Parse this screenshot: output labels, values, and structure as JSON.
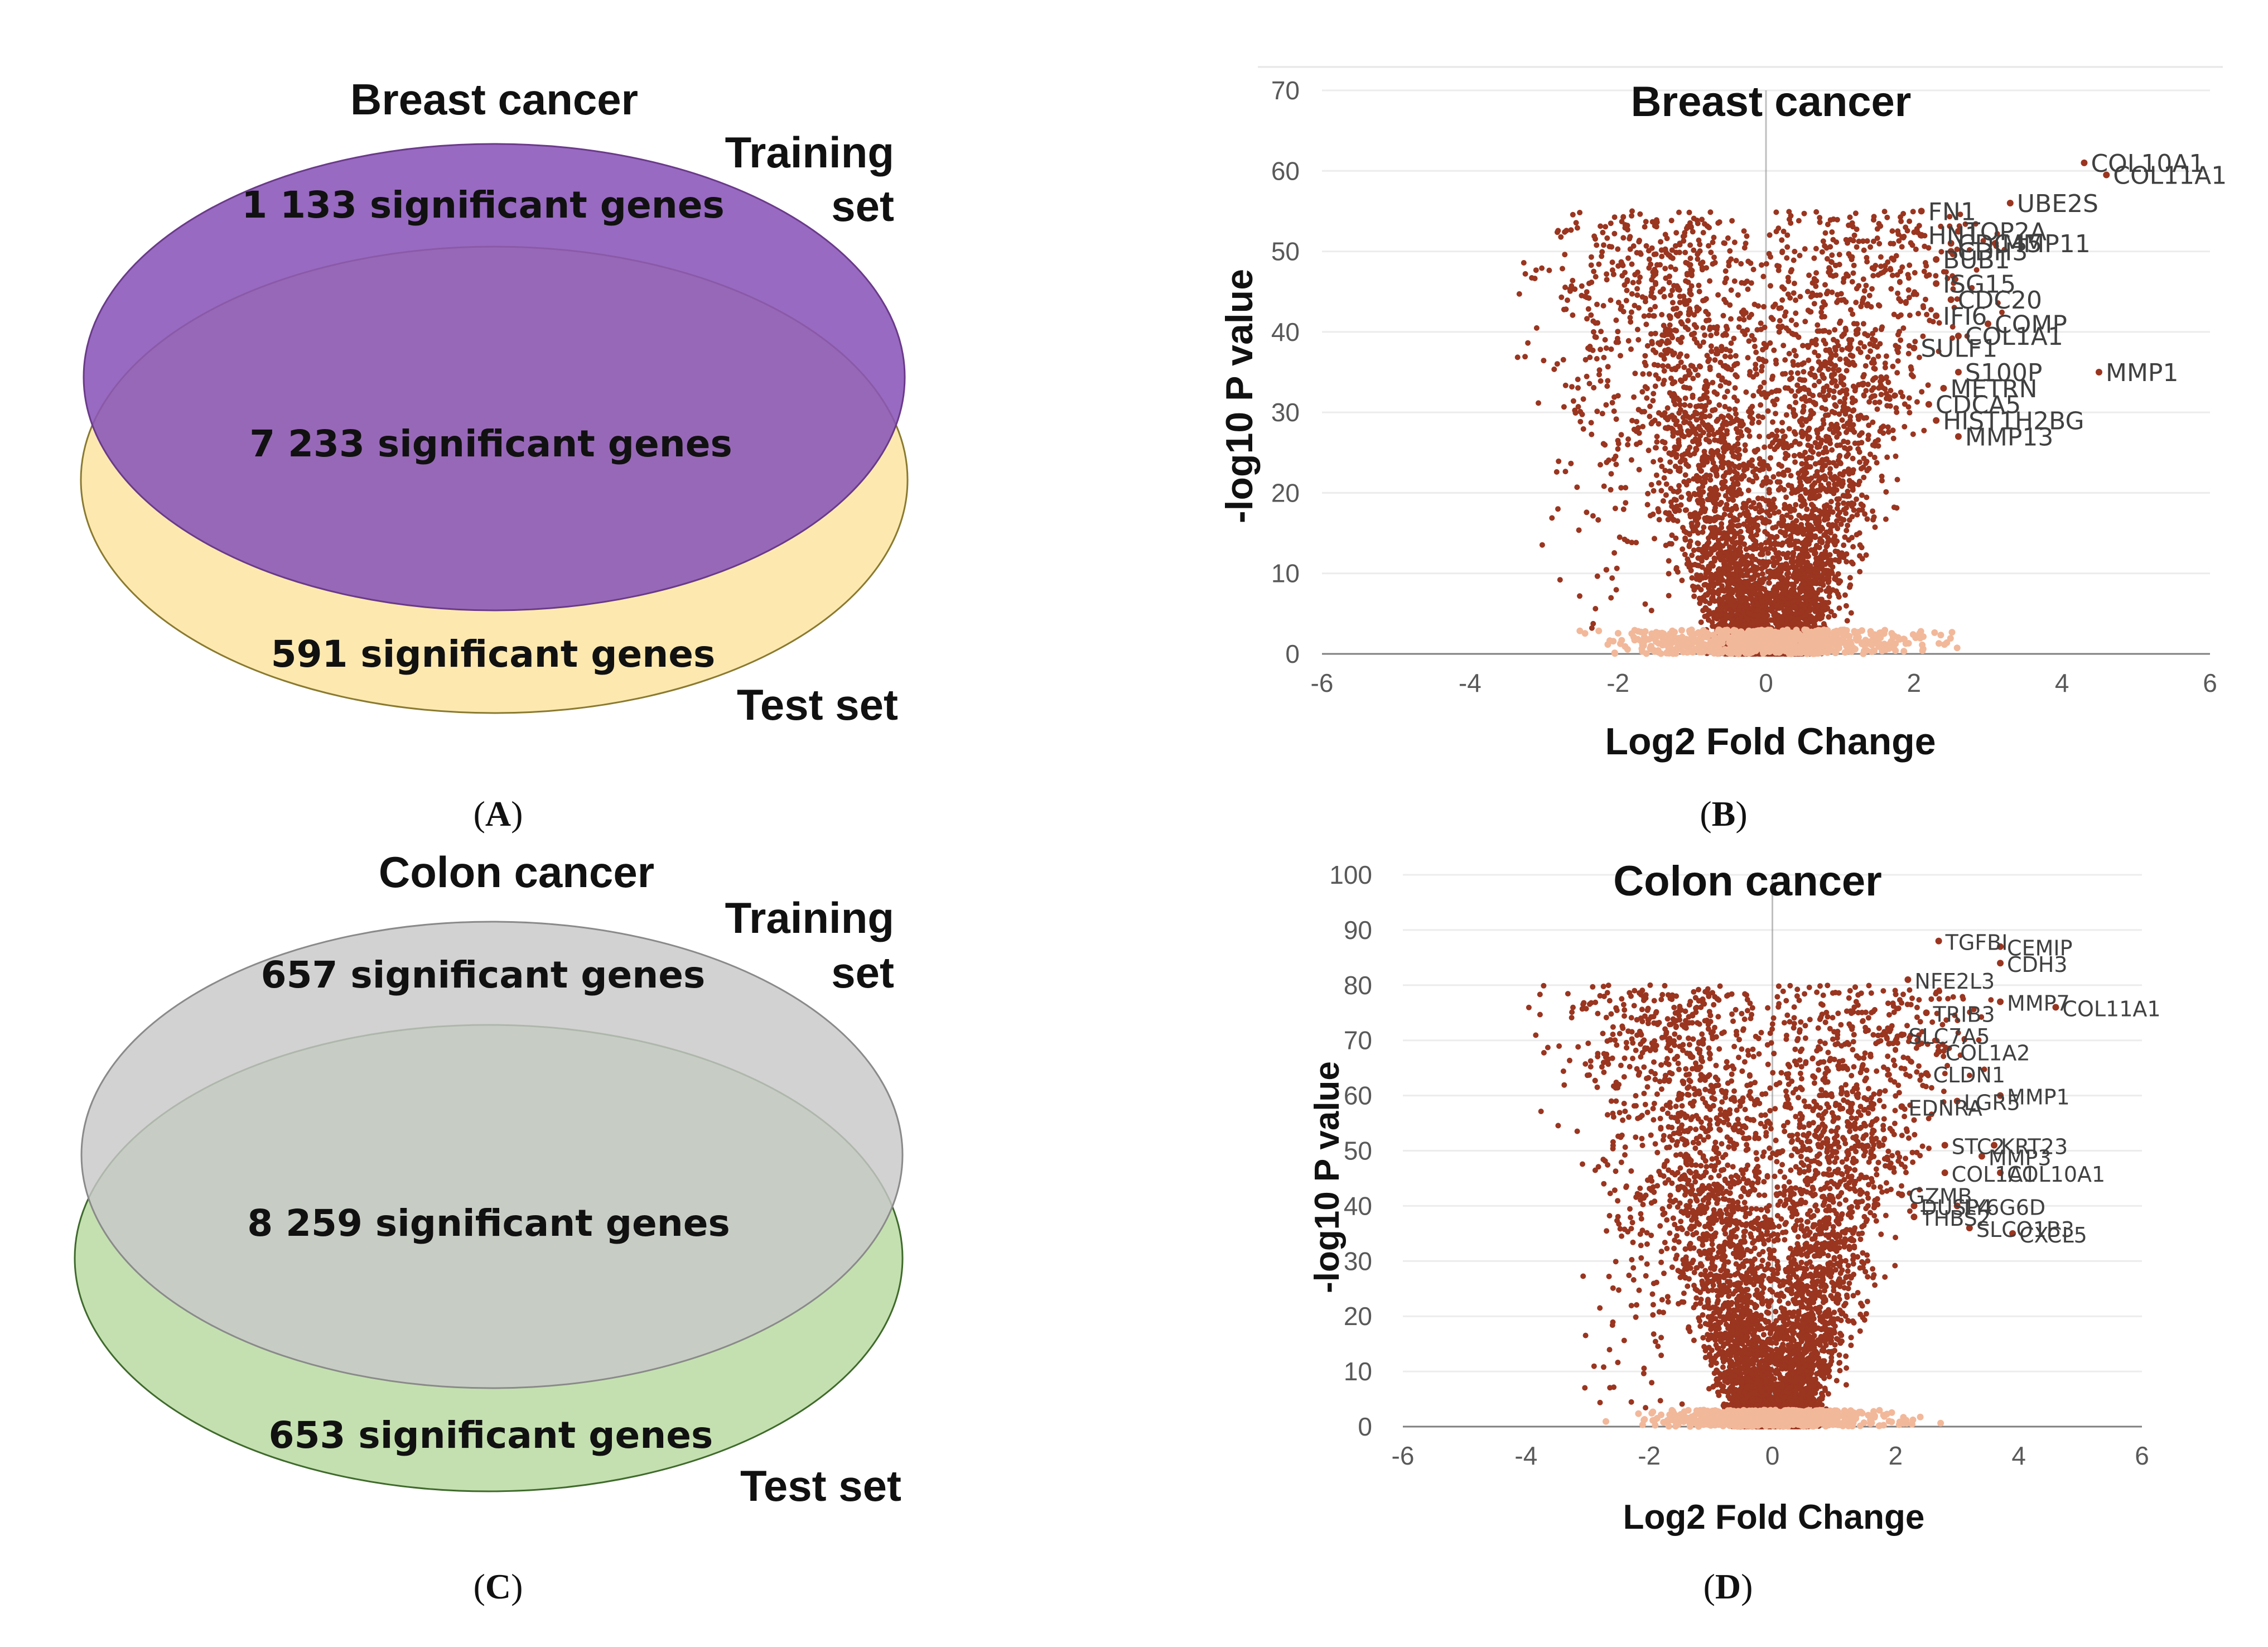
{
  "panels": {
    "A": {
      "label": "A",
      "title": "Breast cancer",
      "training_label_line1": "Training",
      "training_label_line2": "set",
      "test_label": "Test set",
      "training_only": "1 133 significant genes",
      "overlap": "7 233 significant genes",
      "test_only": "591 significant genes",
      "training_color": "#8a55b8",
      "test_color": "#fde9b0",
      "overlap_color": "#9560a0"
    },
    "B": {
      "label": "B"
    },
    "C": {
      "label": "C",
      "title": "Colon cancer",
      "training_label_line1": "Training",
      "training_label_line2": "set",
      "test_label": "Test set",
      "training_only": "657 significant genes",
      "overlap": "8 259 significant genes",
      "test_only": "653 significant genes",
      "training_color": "#cfcfcf",
      "test_color": "#c4e0b0",
      "overlap_color": "#c0c9b8"
    },
    "D": {
      "label": "D"
    }
  },
  "chart_data": [
    {
      "type": "scatter",
      "title": "Breast cancer",
      "xlabel": "Log2 Fold Change",
      "ylabel": "-log10 P value",
      "xlim": [
        -6,
        6
      ],
      "ylim": [
        0,
        70
      ],
      "xticks": [
        -6,
        -4,
        -2,
        0,
        2,
        4,
        6
      ],
      "yticks": [
        0,
        10,
        20,
        30,
        40,
        50,
        60,
        70
      ],
      "point_color": "#9a3520",
      "nonsig_color": "#f2b89a",
      "labeled_genes": [
        {
          "gene": "COL10A1",
          "x": 4.3,
          "y": 61
        },
        {
          "gene": "COL11A1",
          "x": 4.6,
          "y": 59.5
        },
        {
          "gene": "UBE2S",
          "x": 3.3,
          "y": 56
        },
        {
          "gene": "FN1",
          "x": 2.1,
          "y": 55
        },
        {
          "gene": "TOP2A",
          "x": 2.6,
          "y": 52.5
        },
        {
          "gene": "HN1",
          "x": 2.1,
          "y": 52
        },
        {
          "gene": "MMP11",
          "x": 3.1,
          "y": 51
        },
        {
          "gene": "CDC45",
          "x": 2.5,
          "y": 51
        },
        {
          "gene": "CDH3",
          "x": 2.5,
          "y": 50
        },
        {
          "gene": "BUB1",
          "x": 2.3,
          "y": 49
        },
        {
          "gene": "ISG15",
          "x": 2.3,
          "y": 46
        },
        {
          "gene": "CDC20",
          "x": 2.5,
          "y": 44
        },
        {
          "gene": "IFI6",
          "x": 2.3,
          "y": 42
        },
        {
          "gene": "COMP",
          "x": 3.0,
          "y": 41
        },
        {
          "gene": "COL1A1",
          "x": 2.6,
          "y": 39.5
        },
        {
          "gene": "SULF1",
          "x": 2.0,
          "y": 38
        },
        {
          "gene": "S100P",
          "x": 2.6,
          "y": 35
        },
        {
          "gene": "MMP1",
          "x": 4.5,
          "y": 35
        },
        {
          "gene": "METRN",
          "x": 2.4,
          "y": 33
        },
        {
          "gene": "CDCA5",
          "x": 2.2,
          "y": 31
        },
        {
          "gene": "HIST1H2BG",
          "x": 2.3,
          "y": 29
        },
        {
          "gene": "MMP13",
          "x": 2.6,
          "y": 27
        }
      ]
    },
    {
      "type": "scatter",
      "title": "Colon cancer",
      "xlabel": "Log2 Fold Change",
      "ylabel": "-log10 P value",
      "xlim": [
        -6,
        6
      ],
      "ylim": [
        0,
        100
      ],
      "xticks": [
        -6,
        -4,
        -2,
        0,
        2,
        4,
        6
      ],
      "yticks": [
        0,
        10,
        20,
        30,
        40,
        50,
        60,
        70,
        80,
        90,
        100
      ],
      "point_color": "#9a3520",
      "nonsig_color": "#f2b89a",
      "labeled_genes": [
        {
          "gene": "TGFBI",
          "x": 2.7,
          "y": 88
        },
        {
          "gene": "CEMIP",
          "x": 3.7,
          "y": 87
        },
        {
          "gene": "CDH3",
          "x": 3.7,
          "y": 84
        },
        {
          "gene": "NFE2L3",
          "x": 2.2,
          "y": 81
        },
        {
          "gene": "MMP7",
          "x": 3.7,
          "y": 77
        },
        {
          "gene": "COL11A1",
          "x": 4.6,
          "y": 76
        },
        {
          "gene": "TRIB3",
          "x": 2.5,
          "y": 75
        },
        {
          "gene": "SLC7A5",
          "x": 2.1,
          "y": 71
        },
        {
          "gene": "COL1A2",
          "x": 2.7,
          "y": 68
        },
        {
          "gene": "CLDN1",
          "x": 2.5,
          "y": 64
        },
        {
          "gene": "MMP1",
          "x": 3.7,
          "y": 60
        },
        {
          "gene": "LGR5",
          "x": 3.0,
          "y": 59
        },
        {
          "gene": "EDNRA",
          "x": 2.1,
          "y": 58
        },
        {
          "gene": "STC2",
          "x": 2.8,
          "y": 51
        },
        {
          "gene": "KRT23",
          "x": 3.6,
          "y": 51
        },
        {
          "gene": "MMP3",
          "x": 3.4,
          "y": 49
        },
        {
          "gene": "COL1A1",
          "x": 2.8,
          "y": 46
        },
        {
          "gene": "COL10A1",
          "x": 3.7,
          "y": 46
        },
        {
          "gene": "GZMB",
          "x": 2.1,
          "y": 42
        },
        {
          "gene": "DUSP4",
          "x": 2.3,
          "y": 40
        },
        {
          "gene": "LY6G6D",
          "x": 3.0,
          "y": 40
        },
        {
          "gene": "THBS2",
          "x": 2.3,
          "y": 38
        },
        {
          "gene": "SLCO1B3",
          "x": 3.2,
          "y": 36
        },
        {
          "gene": "CXCL5",
          "x": 3.9,
          "y": 35
        }
      ]
    }
  ]
}
